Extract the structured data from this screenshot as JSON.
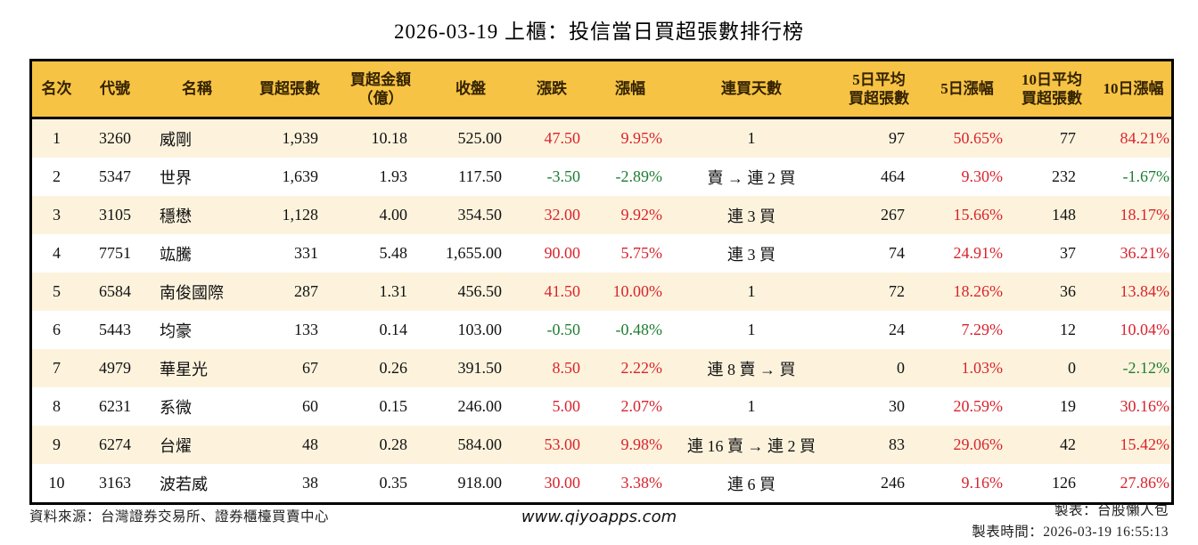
{
  "title": "2026-03-19 上櫃：投信當日買超張數排行榜",
  "colors": {
    "header_bg": "#F6C344",
    "row_alt_bg": "#FDF3DD",
    "row_bg": "#FFFFFF",
    "up_red": "#D9232D",
    "down_green": "#1E7D32",
    "border_black": "#000000"
  },
  "chart_data": {
    "type": "table",
    "title": "2026-03-19 上櫃：投信當日買超張數排行榜",
    "columns": [
      {
        "name": "rank",
        "label": "名次"
      },
      {
        "name": "code",
        "label": "代號"
      },
      {
        "name": "name",
        "label": "名稱"
      },
      {
        "name": "net-buy-volume",
        "label": "買超張數"
      },
      {
        "name": "net-buy-amount-100m",
        "label": "買超金額\n（億）"
      },
      {
        "name": "close",
        "label": "收盤"
      },
      {
        "name": "change",
        "label": "漲跌"
      },
      {
        "name": "change-pct",
        "label": "漲幅"
      },
      {
        "name": "consecutive-buy-days",
        "label": "連買天數"
      },
      {
        "name": "avg5-net-buy-volume",
        "label": "5日平均\n買超張數"
      },
      {
        "name": "pct5-change",
        "label": "5日漲幅"
      },
      {
        "name": "avg10-net-buy-volume",
        "label": "10日平均\n買超張數"
      },
      {
        "name": "pct10-change",
        "label": "10日漲幅"
      }
    ],
    "rows": [
      {
        "cells": [
          {
            "v": "1"
          },
          {
            "v": "3260"
          },
          {
            "v": "威剛"
          },
          {
            "v": "1,939"
          },
          {
            "v": "10.18"
          },
          {
            "v": "525.00"
          },
          {
            "v": "47.50",
            "trend": "up"
          },
          {
            "v": "9.95%",
            "trend": "up"
          },
          {
            "v": "1"
          },
          {
            "v": "97"
          },
          {
            "v": "50.65%",
            "trend": "up"
          },
          {
            "v": "77"
          },
          {
            "v": "84.21%",
            "trend": "up"
          }
        ]
      },
      {
        "cells": [
          {
            "v": "2"
          },
          {
            "v": "5347"
          },
          {
            "v": "世界"
          },
          {
            "v": "1,639"
          },
          {
            "v": "1.93"
          },
          {
            "v": "117.50"
          },
          {
            "v": "-3.50",
            "trend": "down"
          },
          {
            "v": "-2.89%",
            "trend": "down"
          },
          {
            "v": "賣 → 連 2 買"
          },
          {
            "v": "464"
          },
          {
            "v": "9.30%",
            "trend": "up"
          },
          {
            "v": "232"
          },
          {
            "v": "-1.67%",
            "trend": "down"
          }
        ]
      },
      {
        "cells": [
          {
            "v": "3"
          },
          {
            "v": "3105"
          },
          {
            "v": "穩懋"
          },
          {
            "v": "1,128"
          },
          {
            "v": "4.00"
          },
          {
            "v": "354.50"
          },
          {
            "v": "32.00",
            "trend": "up"
          },
          {
            "v": "9.92%",
            "trend": "up"
          },
          {
            "v": "連 3 買"
          },
          {
            "v": "267"
          },
          {
            "v": "15.66%",
            "trend": "up"
          },
          {
            "v": "148"
          },
          {
            "v": "18.17%",
            "trend": "up"
          }
        ]
      },
      {
        "cells": [
          {
            "v": "4"
          },
          {
            "v": "7751"
          },
          {
            "v": "竑騰"
          },
          {
            "v": "331"
          },
          {
            "v": "5.48"
          },
          {
            "v": "1,655.00"
          },
          {
            "v": "90.00",
            "trend": "up"
          },
          {
            "v": "5.75%",
            "trend": "up"
          },
          {
            "v": "連 3 買"
          },
          {
            "v": "74"
          },
          {
            "v": "24.91%",
            "trend": "up"
          },
          {
            "v": "37"
          },
          {
            "v": "36.21%",
            "trend": "up"
          }
        ]
      },
      {
        "cells": [
          {
            "v": "5"
          },
          {
            "v": "6584"
          },
          {
            "v": "南俊國際"
          },
          {
            "v": "287"
          },
          {
            "v": "1.31"
          },
          {
            "v": "456.50"
          },
          {
            "v": "41.50",
            "trend": "up"
          },
          {
            "v": "10.00%",
            "trend": "up"
          },
          {
            "v": "1"
          },
          {
            "v": "72"
          },
          {
            "v": "18.26%",
            "trend": "up"
          },
          {
            "v": "36"
          },
          {
            "v": "13.84%",
            "trend": "up"
          }
        ]
      },
      {
        "cells": [
          {
            "v": "6"
          },
          {
            "v": "5443"
          },
          {
            "v": "均豪"
          },
          {
            "v": "133"
          },
          {
            "v": "0.14"
          },
          {
            "v": "103.00"
          },
          {
            "v": "-0.50",
            "trend": "down"
          },
          {
            "v": "-0.48%",
            "trend": "down"
          },
          {
            "v": "1"
          },
          {
            "v": "24"
          },
          {
            "v": "7.29%",
            "trend": "up"
          },
          {
            "v": "12"
          },
          {
            "v": "10.04%",
            "trend": "up"
          }
        ]
      },
      {
        "cells": [
          {
            "v": "7"
          },
          {
            "v": "4979"
          },
          {
            "v": "華星光"
          },
          {
            "v": "67"
          },
          {
            "v": "0.26"
          },
          {
            "v": "391.50"
          },
          {
            "v": "8.50",
            "trend": "up"
          },
          {
            "v": "2.22%",
            "trend": "up"
          },
          {
            "v": "連 8 賣 → 買"
          },
          {
            "v": "0"
          },
          {
            "v": "1.03%",
            "trend": "up"
          },
          {
            "v": "0"
          },
          {
            "v": "-2.12%",
            "trend": "down"
          }
        ]
      },
      {
        "cells": [
          {
            "v": "8"
          },
          {
            "v": "6231"
          },
          {
            "v": "系微"
          },
          {
            "v": "60"
          },
          {
            "v": "0.15"
          },
          {
            "v": "246.00"
          },
          {
            "v": "5.00",
            "trend": "up"
          },
          {
            "v": "2.07%",
            "trend": "up"
          },
          {
            "v": "1"
          },
          {
            "v": "30"
          },
          {
            "v": "20.59%",
            "trend": "up"
          },
          {
            "v": "19"
          },
          {
            "v": "30.16%",
            "trend": "up"
          }
        ]
      },
      {
        "cells": [
          {
            "v": "9"
          },
          {
            "v": "6274"
          },
          {
            "v": "台燿"
          },
          {
            "v": "48"
          },
          {
            "v": "0.28"
          },
          {
            "v": "584.00"
          },
          {
            "v": "53.00",
            "trend": "up"
          },
          {
            "v": "9.98%",
            "trend": "up"
          },
          {
            "v": "連 16 賣 → 連 2 買"
          },
          {
            "v": "83"
          },
          {
            "v": "29.06%",
            "trend": "up"
          },
          {
            "v": "42"
          },
          {
            "v": "15.42%",
            "trend": "up"
          }
        ]
      },
      {
        "cells": [
          {
            "v": "10"
          },
          {
            "v": "3163"
          },
          {
            "v": "波若威"
          },
          {
            "v": "38"
          },
          {
            "v": "0.35"
          },
          {
            "v": "918.00"
          },
          {
            "v": "30.00",
            "trend": "up"
          },
          {
            "v": "3.38%",
            "trend": "up"
          },
          {
            "v": "連 6 買"
          },
          {
            "v": "246"
          },
          {
            "v": "9.16%",
            "trend": "up"
          },
          {
            "v": "126"
          },
          {
            "v": "27.86%",
            "trend": "up"
          }
        ]
      }
    ]
  },
  "footer": {
    "source": "資料來源：台灣證券交易所、證券櫃檯買賣中心",
    "website": "www.qiyoapps.com",
    "maker": "製表：台股懶人包",
    "timestamp": "製表時間：2026-03-19 16:55:13"
  }
}
